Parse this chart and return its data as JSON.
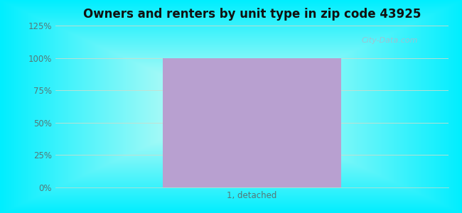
{
  "title": "Owners and renters by unit type in zip code 43925",
  "categories": [
    "1, detached"
  ],
  "values": [
    100
  ],
  "bar_color": "#b8a0d0",
  "ylim": [
    0,
    125
  ],
  "yticks": [
    0,
    25,
    50,
    75,
    100,
    125
  ],
  "ytick_labels": [
    "0%",
    "25%",
    "50%",
    "75%",
    "100%",
    "125%"
  ],
  "title_fontsize": 12,
  "tick_label_color": "#557777",
  "bg_outer_color": "#00eeff",
  "watermark": "City-Data.com",
  "watermark_color": "#aabbcc",
  "grid_color": "#ccddcc",
  "bar_xleft": 0.22,
  "bar_xright": 0.78
}
